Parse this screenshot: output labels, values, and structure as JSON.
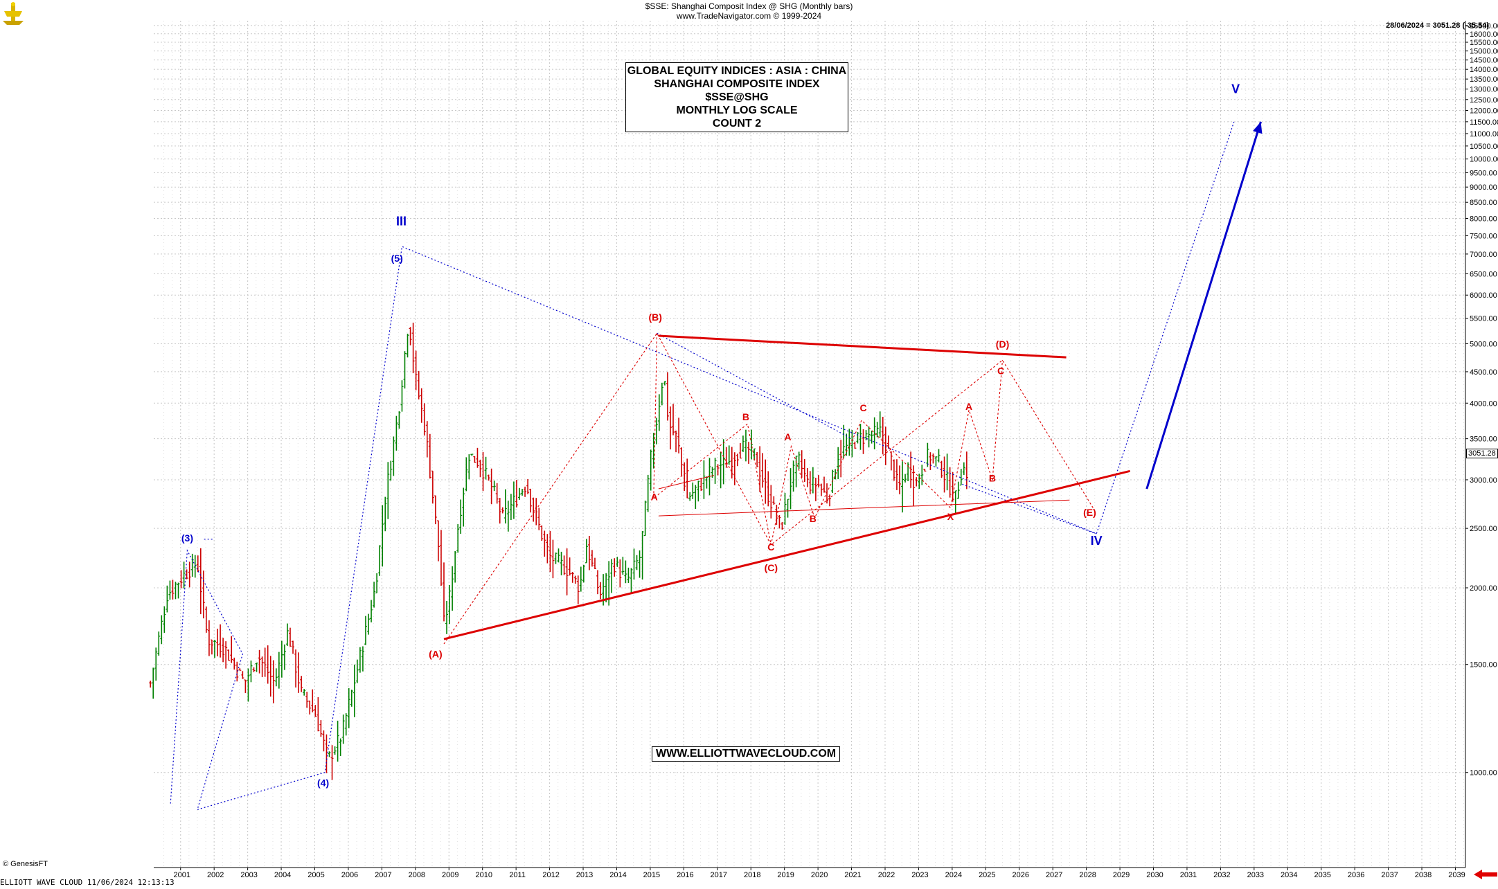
{
  "header": {
    "line1": "$SSE:  Shanghai Composit Index @ SHG  (Monthly bars)",
    "line2": "www.TradeNavigator.com © 1999-2024"
  },
  "info_box": {
    "line1": "GLOBAL EQUITY INDICES : ASIA : CHINA",
    "line2": "SHANGHAI COMPOSITE INDEX",
    "line3": "$SSE@SHG",
    "line4": "MONTHLY LOG SCALE",
    "line5": "COUNT 2"
  },
  "url_box": "WWW.ELLIOTTWAVECLOUD.COM",
  "last_readout": "28/06/2024 = 3051.28 (-35.54)",
  "last_value_box": "3051.28",
  "credit": "© GenesisFT",
  "footer": "ELLIOTT WAVE CLOUD   11/06/2024 12:13:13",
  "colors": {
    "bull_bar": "#008000",
    "bear_bar": "#cc0000",
    "blue": "#0000cc",
    "red": "#dd0000",
    "grid": "#c8c8c8"
  },
  "chart_data": {
    "type": "bar",
    "scale": "log",
    "title": "$SSE:  Shanghai Composit Index @ SHG  (Monthly bars)",
    "x_ticks": [
      "2001",
      "2002",
      "2003",
      "2004",
      "2005",
      "2006",
      "2007",
      "2008",
      "2009",
      "2010",
      "2011",
      "2012",
      "2013",
      "2014",
      "2015",
      "2016",
      "2017",
      "2018",
      "2019",
      "2020",
      "2021",
      "2022",
      "2023",
      "2024",
      "2025",
      "2026",
      "2027",
      "2028",
      "2029",
      "2030",
      "2031",
      "2032",
      "2033",
      "2034",
      "2035",
      "2036",
      "2037",
      "2038",
      "2039"
    ],
    "xlim": [
      2000.2,
      2039.3
    ],
    "ylim": [
      700,
      16800
    ],
    "y_ticks": [
      1000,
      1500,
      2000,
      2500,
      3000,
      3500,
      4000,
      4500,
      5000,
      5500,
      6000,
      6500,
      7000,
      7500,
      8000,
      8500,
      9000,
      9500,
      10000,
      10500,
      11000,
      11500,
      12000,
      12500,
      13000,
      13500,
      14000,
      14500,
      15000,
      15500,
      16000,
      16500
    ],
    "price_path": [
      [
        2000.1,
        1400
      ],
      [
        2000.6,
        1950
      ],
      [
        2001.1,
        2100
      ],
      [
        2001.5,
        2200
      ],
      [
        2001.8,
        1650
      ],
      [
        2002.3,
        1600
      ],
      [
        2002.9,
        1400
      ],
      [
        2003.3,
        1550
      ],
      [
        2003.8,
        1400
      ],
      [
        2004.2,
        1700
      ],
      [
        2004.6,
        1350
      ],
      [
        2005.0,
        1250
      ],
      [
        2005.4,
        1050
      ],
      [
        2005.8,
        1150
      ],
      [
        2006.3,
        1500
      ],
      [
        2006.8,
        2000
      ],
      [
        2007.1,
        2800
      ],
      [
        2007.5,
        3900
      ],
      [
        2007.8,
        5500
      ],
      [
        2008.0,
        4400
      ],
      [
        2008.3,
        3600
      ],
      [
        2008.7,
        2300
      ],
      [
        2008.85,
        1750
      ],
      [
        2009.0,
        1900
      ],
      [
        2009.3,
        2600
      ],
      [
        2009.6,
        3300
      ],
      [
        2009.9,
        3200
      ],
      [
        2010.3,
        2900
      ],
      [
        2010.6,
        2600
      ],
      [
        2011.0,
        2800
      ],
      [
        2011.3,
        2950
      ],
      [
        2011.7,
        2500
      ],
      [
        2012.0,
        2250
      ],
      [
        2012.5,
        2150
      ],
      [
        2012.9,
        2000
      ],
      [
        2013.1,
        2350
      ],
      [
        2013.5,
        1950
      ],
      [
        2013.9,
        2200
      ],
      [
        2014.3,
        2050
      ],
      [
        2014.7,
        2250
      ],
      [
        2015.0,
        3200
      ],
      [
        2015.4,
        4500
      ],
      [
        2015.55,
        3700
      ],
      [
        2015.8,
        3500
      ],
      [
        2016.1,
        2800
      ],
      [
        2016.5,
        2950
      ],
      [
        2016.9,
        3150
      ],
      [
        2017.3,
        3200
      ],
      [
        2017.8,
        3400
      ],
      [
        2018.1,
        3300
      ],
      [
        2018.5,
        2850
      ],
      [
        2018.9,
        2500
      ],
      [
        2019.2,
        3000
      ],
      [
        2019.4,
        3250
      ],
      [
        2019.7,
        2950
      ],
      [
        2020.0,
        2950
      ],
      [
        2020.3,
        2800
      ],
      [
        2020.6,
        3300
      ],
      [
        2020.9,
        3400
      ],
      [
        2021.2,
        3500
      ],
      [
        2021.6,
        3550
      ],
      [
        2021.9,
        3600
      ],
      [
        2022.2,
        3200
      ],
      [
        2022.4,
        2900
      ],
      [
        2022.7,
        3150
      ],
      [
        2022.9,
        2950
      ],
      [
        2023.3,
        3300
      ],
      [
        2023.6,
        3200
      ],
      [
        2023.9,
        2950
      ],
      [
        2024.1,
        2800
      ],
      [
        2024.3,
        3150
      ],
      [
        2024.5,
        3051.28
      ]
    ],
    "wave_labels": [
      {
        "text": "III",
        "x": 2007.58,
        "y": 7800,
        "color": "blue"
      },
      {
        "text": "(5)",
        "x": 2007.45,
        "y": 6800,
        "color": "blue"
      },
      {
        "text": "(3)",
        "x": 2001.2,
        "y": 2380,
        "color": "blue"
      },
      {
        "text": "(4)",
        "x": 2005.25,
        "y": 950,
        "color": "blue"
      },
      {
        "text": "V",
        "x": 2032.45,
        "y": 12800,
        "color": "blue"
      },
      {
        "text": "IV",
        "x": 2028.3,
        "y": 2350,
        "color": "blue"
      },
      {
        "text": "(A)",
        "x": 2008.6,
        "y": 1540,
        "color": "red"
      },
      {
        "text": "(B)",
        "x": 2015.15,
        "y": 5450,
        "color": "red"
      },
      {
        "text": "(C)",
        "x": 2018.6,
        "y": 2130,
        "color": "red"
      },
      {
        "text": "(D)",
        "x": 2025.5,
        "y": 4930,
        "color": "red"
      },
      {
        "text": "(E)",
        "x": 2028.1,
        "y": 2620,
        "color": "red"
      },
      {
        "text": "A",
        "x": 2015.12,
        "y": 2780,
        "color": "red"
      },
      {
        "text": "B",
        "x": 2017.85,
        "y": 3750,
        "color": "red"
      },
      {
        "text": "C",
        "x": 2018.6,
        "y": 2300,
        "color": "red"
      },
      {
        "text": "A",
        "x": 2019.1,
        "y": 3480,
        "color": "red"
      },
      {
        "text": "B",
        "x": 2019.85,
        "y": 2560,
        "color": "red"
      },
      {
        "text": "C",
        "x": 2021.35,
        "y": 3880,
        "color": "red"
      },
      {
        "text": "X",
        "x": 2023.95,
        "y": 2580,
        "color": "red"
      },
      {
        "text": "A",
        "x": 2024.5,
        "y": 3900,
        "color": "red"
      },
      {
        "text": "B",
        "x": 2025.2,
        "y": 2980,
        "color": "red"
      },
      {
        "text": "C",
        "x": 2025.45,
        "y": 4460,
        "color": "red"
      }
    ],
    "blue_dotted_paths": [
      [
        [
          2000.7,
          890
        ],
        [
          2001.2,
          2300
        ],
        [
          2002.85,
          1560
        ],
        [
          2001.5,
          870
        ]
      ],
      [
        [
          2001.5,
          870
        ],
        [
          2005.3,
          1000
        ],
        [
          2007.6,
          7200
        ],
        [
          2028.3,
          2450
        ],
        [
          2032.4,
          11500
        ]
      ],
      [
        [
          2001.7,
          2400
        ],
        [
          2002.0,
          2400
        ]
      ]
    ],
    "red_dotted_paths": [
      [
        [
          2008.85,
          1620
        ],
        [
          2015.2,
          5200
        ],
        [
          2018.6,
          2350
        ],
        [
          2025.5,
          4700
        ],
        [
          2028.2,
          2700
        ]
      ],
      [
        [
          2015.2,
          5200
        ],
        [
          2015.1,
          2800
        ],
        [
          2017.9,
          3700
        ],
        [
          2018.6,
          2350
        ],
        [
          2019.2,
          3400
        ],
        [
          2019.9,
          2600
        ],
        [
          2021.3,
          3750
        ],
        [
          2023.95,
          2700
        ],
        [
          2024.5,
          3900
        ],
        [
          2025.2,
          3000
        ],
        [
          2025.5,
          4700
        ]
      ]
    ],
    "red_solid_lines": [
      {
        "from": [
          2008.85,
          1650
        ],
        "to": [
          2029.3,
          3100
        ],
        "width": 3
      },
      {
        "from": [
          2015.25,
          5150
        ],
        "to": [
          2027.4,
          4750
        ],
        "width": 3
      },
      {
        "from": [
          2015.25,
          2620
        ],
        "to": [
          2027.5,
          2780
        ],
        "width": 1
      },
      {
        "from": [
          2015.25,
          2900
        ],
        "to": [
          2016.9,
          3050
        ],
        "width": 1
      }
    ],
    "blue_dotted_extra": [
      [
        [
          2015.2,
          5200
        ],
        [
          2021.0,
          3500
        ]
      ],
      [
        [
          2024.3,
          2950
        ],
        [
          2028.3,
          2450
        ]
      ]
    ],
    "blue_solid_arrow": {
      "from": [
        2029.8,
        2900
      ],
      "to": [
        2033.2,
        11500
      ]
    }
  }
}
